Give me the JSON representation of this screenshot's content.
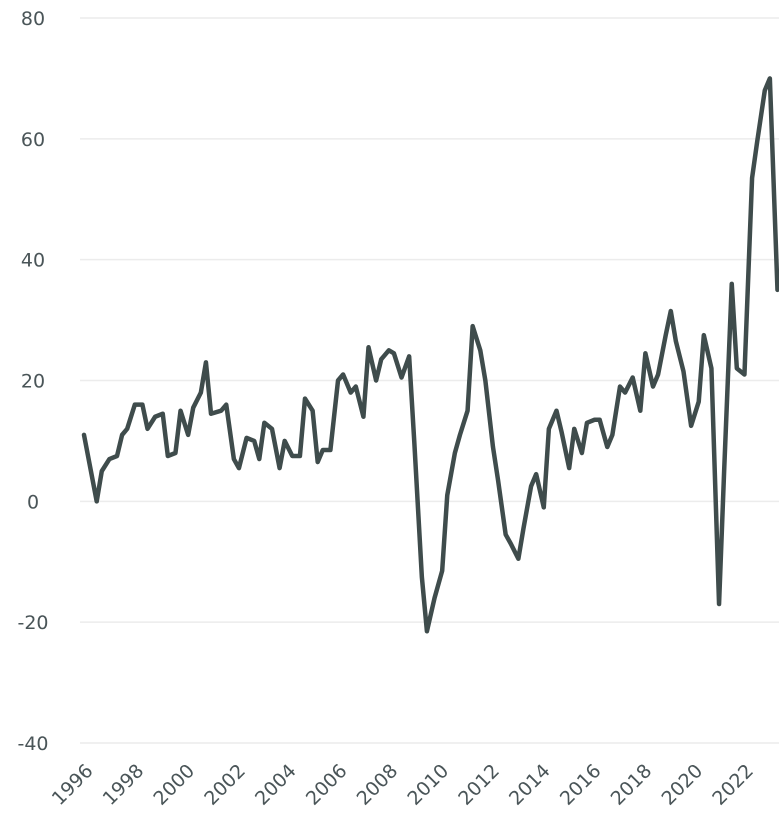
{
  "chart_data": {
    "type": "line",
    "x": [
      1996.0,
      1996.5,
      1996.7,
      1997.0,
      1997.3,
      1997.5,
      1997.7,
      1998.0,
      1998.3,
      1998.5,
      1998.8,
      1999.1,
      1999.3,
      1999.6,
      1999.8,
      2000.1,
      2000.3,
      2000.6,
      2000.8,
      2001.0,
      2001.4,
      2001.6,
      2001.9,
      2002.1,
      2002.4,
      2002.7,
      2002.9,
      2003.1,
      2003.4,
      2003.7,
      2003.9,
      2004.2,
      2004.5,
      2004.7,
      2005.0,
      2005.2,
      2005.4,
      2005.7,
      2006.0,
      2006.2,
      2006.5,
      2006.7,
      2007.0,
      2007.2,
      2007.5,
      2007.7,
      2008.0,
      2008.2,
      2008.5,
      2008.8,
      2009.0,
      2009.3,
      2009.5,
      2009.8,
      2010.1,
      2010.3,
      2010.6,
      2010.8,
      2011.1,
      2011.3,
      2011.6,
      2011.8,
      2012.1,
      2012.3,
      2012.6,
      2012.8,
      2013.1,
      2013.3,
      2013.6,
      2013.8,
      2014.1,
      2014.3,
      2014.6,
      2014.8,
      2015.1,
      2015.3,
      2015.6,
      2015.8,
      2016.1,
      2016.3,
      2016.6,
      2016.8,
      2017.1,
      2017.3,
      2017.6,
      2017.9,
      2018.1,
      2018.4,
      2018.6,
      2018.9,
      2019.1,
      2019.3,
      2019.6,
      2019.9,
      2020.2,
      2020.4,
      2020.7,
      2021.0,
      2021.2,
      2021.5,
      2021.7,
      2022.0,
      2022.3,
      2022.5,
      2022.8,
      2023.0,
      2023.3
    ],
    "series": [
      {
        "color": "#3f4c4c",
        "values": [
          11,
          0,
          5,
          7,
          7.5,
          11,
          12,
          16,
          16,
          12,
          14,
          14.5,
          7.5,
          8,
          15,
          11,
          15.5,
          18,
          23,
          14.5,
          15,
          16,
          7,
          5.5,
          10.5,
          10,
          7,
          13,
          12,
          5.5,
          10,
          7.5,
          7.5,
          17,
          15,
          6.5,
          8.5,
          8.5,
          20,
          21,
          18,
          19,
          14,
          25.5,
          20,
          23.5,
          25,
          24.5,
          20.5,
          24,
          10,
          -12.5,
          -21.5,
          -16,
          -11.5,
          1,
          8,
          11,
          15,
          29,
          25,
          20,
          9,
          3.5,
          -5.5,
          -7,
          -9.5,
          -4.5,
          2.5,
          4.5,
          -1,
          12,
          15,
          11.5,
          5.5,
          12,
          8,
          13,
          13.5,
          13.5,
          9,
          11,
          19,
          18,
          20.5,
          15,
          24.5,
          19,
          21,
          27.5,
          31.5,
          26.5,
          21.5,
          12.5,
          16.5,
          27.5,
          22,
          -17,
          5,
          36,
          22,
          21,
          53.5,
          59.5,
          68,
          70,
          35
        ]
      }
    ],
    "xlim": [
      1996,
      2023.36
    ],
    "xticks": [
      1996,
      1998,
      2000,
      2002,
      2004,
      2006,
      2008,
      2010,
      2012,
      2014,
      2016,
      2018,
      2020,
      2022
    ],
    "ylim": [
      -40,
      80
    ],
    "yticks": [
      -40,
      -20,
      0,
      20,
      40,
      60,
      80
    ],
    "grid": true
  }
}
